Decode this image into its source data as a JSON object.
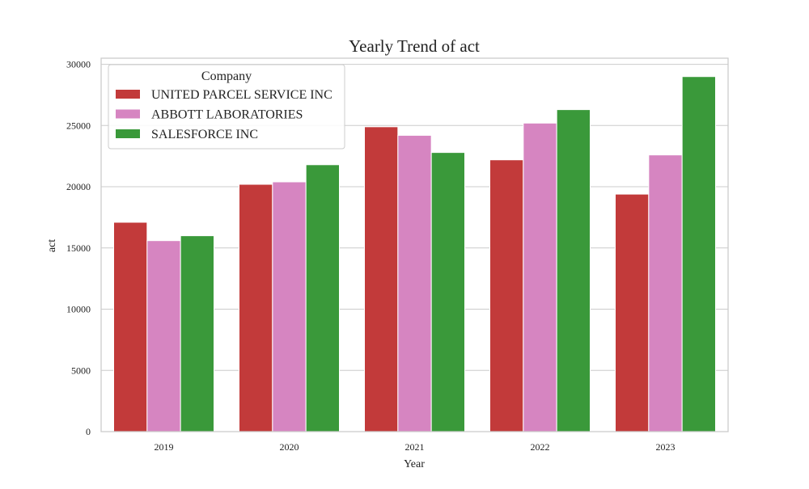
{
  "chart_data": {
    "type": "bar",
    "title": "Yearly Trend of act",
    "xlabel": "Year",
    "ylabel": "act",
    "categories": [
      "2019",
      "2020",
      "2021",
      "2022",
      "2023"
    ],
    "ylim": [
      0,
      30500
    ],
    "yticks": [
      0,
      5000,
      10000,
      15000,
      20000,
      25000,
      30000
    ],
    "grid": true,
    "legend": {
      "title": "Company",
      "placement": "top-left"
    },
    "series": [
      {
        "name": "UNITED PARCEL SERVICE INC",
        "color": "#c23a3a",
        "values": [
          17100,
          20200,
          24900,
          22200,
          19400
        ]
      },
      {
        "name": "ABBOTT LABORATORIES",
        "color": "#d685c1",
        "values": [
          15600,
          20400,
          24200,
          25200,
          22600
        ]
      },
      {
        "name": "SALESFORCE INC",
        "color": "#3a993a",
        "values": [
          16000,
          21800,
          22800,
          26300,
          29000
        ]
      }
    ]
  }
}
